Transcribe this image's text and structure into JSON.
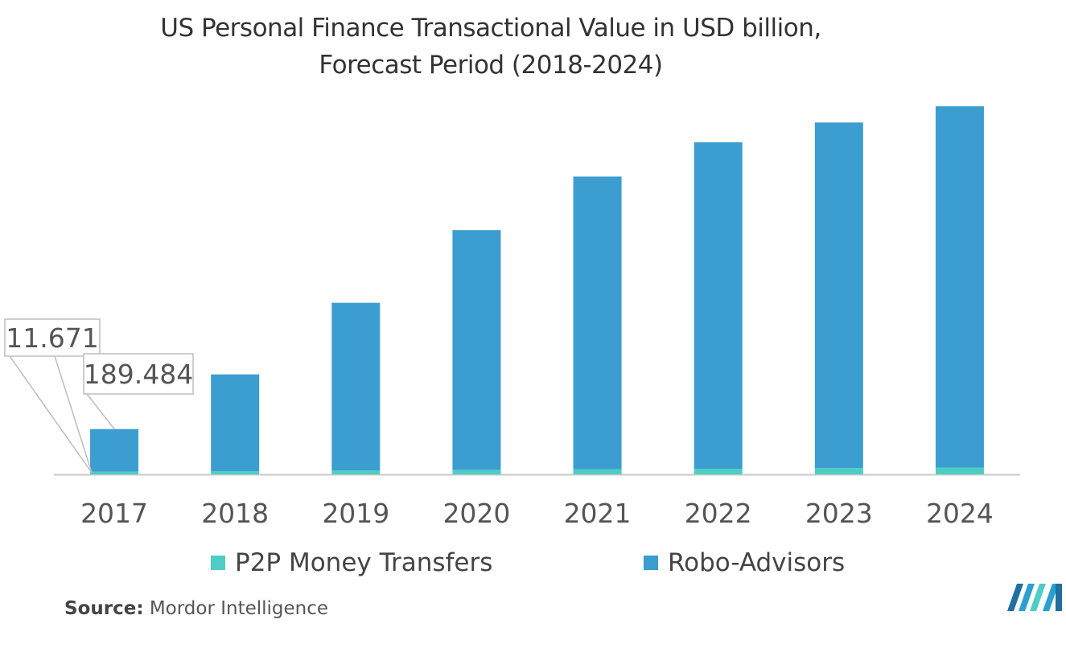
{
  "title_line1": "US Personal Finance Transactional Value in USD billion,",
  "title_line2": "Forecast Period (2018-2024)",
  "source_label": "Source:",
  "source_text": "Mordor Intelligence",
  "colors": {
    "p2p": "#4ecdc4",
    "robo": "#3b9dd0",
    "axis": "#c9c9c9",
    "label_border": "#bdbdbd"
  },
  "chart_data": {
    "type": "bar",
    "stacked": true,
    "categories": [
      "2017",
      "2018",
      "2019",
      "2020",
      "2021",
      "2022",
      "2023",
      "2024"
    ],
    "series": [
      {
        "name": "P2P Money Transfers",
        "values": [
          11.671,
          14,
          17,
          20,
          23,
          25,
          28,
          30
        ]
      },
      {
        "name": "Robo-Advisors",
        "values": [
          189.484,
          430,
          745,
          1065,
          1300,
          1450,
          1535,
          1605
        ]
      }
    ],
    "data_labels": [
      {
        "series": "P2P Money Transfers",
        "category": "2017",
        "text": "11.671"
      },
      {
        "series": "Robo-Advisors",
        "category": "2017",
        "text": "189.484"
      }
    ],
    "ylim": [
      0,
      1700
    ],
    "grid": false,
    "legend": "bottom"
  }
}
